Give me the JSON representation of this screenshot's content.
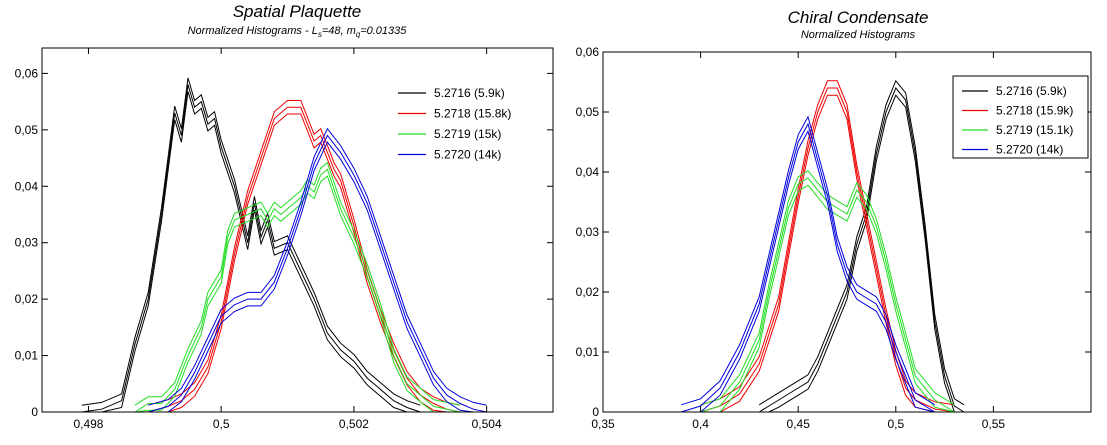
{
  "chart_data": [
    {
      "type": "line",
      "title": "Spatial Plaquette",
      "subtitle_prefix": "Normalized Histograms -  L",
      "subtitle_sub1": "s",
      "subtitle_mid": "=48, m",
      "subtitle_sub2": "q",
      "subtitle_suffix": "=0.01335",
      "xlim": [
        0.4973,
        0.505
      ],
      "ylim": [
        0,
        0.0645
      ],
      "xticks": [
        0.498,
        0.5,
        0.502,
        0.504
      ],
      "xtick_labels": [
        "0,498",
        "0,5",
        "0,502",
        "0,504"
      ],
      "yticks": [
        0,
        0.01,
        0.02,
        0.03,
        0.04,
        0.05,
        0.06
      ],
      "ytick_labels": [
        "0",
        "0,01",
        "0,02",
        "0,03",
        "0,04",
        "0,05",
        "0,06"
      ],
      "error_band": 0.0012,
      "series": [
        {
          "name": "5.2716 (5.9k)",
          "color": "#000000",
          "x": [
            0.4979,
            0.4982,
            0.4985,
            0.4987,
            0.4989,
            0.4991,
            0.4993,
            0.4994,
            0.4995,
            0.4996,
            0.4997,
            0.4998,
            0.4999,
            0.5,
            0.5002,
            0.5004,
            0.5005,
            0.5006,
            0.5007,
            0.5008,
            0.501,
            0.5012,
            0.5014,
            0.5016,
            0.5018,
            0.502,
            0.5022,
            0.5024,
            0.5026,
            0.5028,
            0.503
          ],
          "y": [
            0.0,
            0.0005,
            0.002,
            0.012,
            0.02,
            0.035,
            0.053,
            0.049,
            0.058,
            0.054,
            0.055,
            0.051,
            0.052,
            0.047,
            0.04,
            0.03,
            0.037,
            0.031,
            0.034,
            0.029,
            0.03,
            0.025,
            0.02,
            0.014,
            0.011,
            0.009,
            0.006,
            0.004,
            0.002,
            0.0008,
            0.0
          ]
        },
        {
          "name": "5.2718 (15.8k)",
          "color": "#ee0000",
          "x": [
            0.4989,
            0.4992,
            0.4994,
            0.4996,
            0.4998,
            0.5,
            0.5002,
            0.5004,
            0.5006,
            0.5008,
            0.501,
            0.5012,
            0.5013,
            0.5014,
            0.5015,
            0.5016,
            0.5017,
            0.5018,
            0.5019,
            0.502,
            0.5022,
            0.5024,
            0.5026,
            0.5028,
            0.503,
            0.5032,
            0.5034,
            0.5036
          ],
          "y": [
            0.0,
            0.001,
            0.002,
            0.004,
            0.008,
            0.016,
            0.028,
            0.038,
            0.045,
            0.052,
            0.054,
            0.054,
            0.051,
            0.048,
            0.049,
            0.046,
            0.043,
            0.041,
            0.037,
            0.033,
            0.024,
            0.017,
            0.011,
            0.006,
            0.003,
            0.0015,
            0.0005,
            0.0
          ]
        },
        {
          "name": "5.2719 (15k)",
          "color": "#22dd22",
          "x": [
            0.4987,
            0.4989,
            0.4991,
            0.4993,
            0.4995,
            0.4997,
            0.4998,
            0.5,
            0.5001,
            0.5002,
            0.5004,
            0.5006,
            0.5007,
            0.5008,
            0.5009,
            0.501,
            0.5011,
            0.5012,
            0.5013,
            0.5014,
            0.5015,
            0.5016,
            0.5018,
            0.502,
            0.5022,
            0.5024,
            0.5026,
            0.5028,
            0.503,
            0.5032,
            0.5034,
            0.5036
          ],
          "y": [
            0.0,
            0.0015,
            0.0015,
            0.004,
            0.01,
            0.015,
            0.02,
            0.024,
            0.031,
            0.034,
            0.035,
            0.036,
            0.034,
            0.036,
            0.035,
            0.036,
            0.037,
            0.038,
            0.04,
            0.039,
            0.042,
            0.043,
            0.036,
            0.031,
            0.025,
            0.018,
            0.01,
            0.005,
            0.003,
            0.001,
            0.0005,
            0.0
          ]
        },
        {
          "name": "5.2720 (14k)",
          "color": "#0000dd",
          "x": [
            0.4989,
            0.4992,
            0.4994,
            0.4996,
            0.4998,
            0.5,
            0.5002,
            0.5004,
            0.5006,
            0.5008,
            0.501,
            0.5012,
            0.5014,
            0.5016,
            0.5018,
            0.502,
            0.5022,
            0.5024,
            0.5026,
            0.5028,
            0.503,
            0.5032,
            0.5034,
            0.5036,
            0.5038,
            0.504
          ],
          "y": [
            0.0,
            0.001,
            0.003,
            0.007,
            0.012,
            0.017,
            0.019,
            0.02,
            0.02,
            0.023,
            0.029,
            0.036,
            0.044,
            0.049,
            0.046,
            0.042,
            0.037,
            0.03,
            0.023,
            0.016,
            0.011,
            0.006,
            0.003,
            0.0015,
            0.0005,
            0.0
          ]
        }
      ]
    },
    {
      "type": "line",
      "title": "Chiral Condensate",
      "subtitle": "Normalized Histograms",
      "xlim": [
        0.35,
        0.6
      ],
      "ylim": [
        0,
        0.06
      ],
      "xticks": [
        0.35,
        0.4,
        0.45,
        0.5,
        0.55
      ],
      "xtick_labels": [
        "0,35",
        "0,4",
        "0,45",
        "0,5",
        "0,55"
      ],
      "yticks": [
        0,
        0.01,
        0.02,
        0.03,
        0.04,
        0.05,
        0.06
      ],
      "ytick_labels": [
        "0",
        "0,01",
        "0,02",
        "0,03",
        "0,04",
        "0,05",
        "0,06"
      ],
      "error_band": 0.0012,
      "series": [
        {
          "name": "5.2716 (5.9k)",
          "color": "#000000",
          "x": [
            0.43,
            0.435,
            0.44,
            0.445,
            0.45,
            0.455,
            0.46,
            0.465,
            0.47,
            0.475,
            0.48,
            0.485,
            0.49,
            0.495,
            0.5,
            0.505,
            0.51,
            0.515,
            0.52,
            0.525,
            0.53,
            0.535
          ],
          "y": [
            0.0,
            0.001,
            0.002,
            0.003,
            0.004,
            0.005,
            0.008,
            0.012,
            0.016,
            0.02,
            0.028,
            0.033,
            0.043,
            0.05,
            0.054,
            0.052,
            0.043,
            0.03,
            0.015,
            0.006,
            0.001,
            0.0
          ]
        },
        {
          "name": "5.2718 (15.9k)",
          "color": "#ee0000",
          "x": [
            0.4,
            0.41,
            0.42,
            0.43,
            0.44,
            0.445,
            0.45,
            0.455,
            0.46,
            0.465,
            0.47,
            0.475,
            0.48,
            0.485,
            0.49,
            0.495,
            0.5,
            0.505,
            0.51,
            0.52,
            0.53
          ],
          "y": [
            0.0,
            0.001,
            0.003,
            0.008,
            0.018,
            0.027,
            0.036,
            0.044,
            0.05,
            0.054,
            0.054,
            0.05,
            0.04,
            0.032,
            0.024,
            0.016,
            0.009,
            0.004,
            0.002,
            0.0005,
            0.0
          ]
        },
        {
          "name": "5.2719 (15.1k)",
          "color": "#22dd22",
          "x": [
            0.4,
            0.41,
            0.42,
            0.43,
            0.435,
            0.44,
            0.445,
            0.45,
            0.455,
            0.46,
            0.465,
            0.47,
            0.475,
            0.48,
            0.485,
            0.49,
            0.495,
            0.5,
            0.505,
            0.51,
            0.52,
            0.53
          ],
          "y": [
            0.0,
            0.001,
            0.005,
            0.012,
            0.02,
            0.027,
            0.034,
            0.038,
            0.039,
            0.037,
            0.035,
            0.034,
            0.033,
            0.037,
            0.035,
            0.031,
            0.025,
            0.018,
            0.012,
            0.006,
            0.002,
            0.0
          ]
        },
        {
          "name": "5.2720 (14k)",
          "color": "#0000dd",
          "x": [
            0.39,
            0.4,
            0.41,
            0.42,
            0.43,
            0.435,
            0.44,
            0.445,
            0.45,
            0.455,
            0.46,
            0.465,
            0.47,
            0.475,
            0.48,
            0.485,
            0.49,
            0.495,
            0.5,
            0.505,
            0.51,
            0.52
          ],
          "y": [
            0.0,
            0.001,
            0.004,
            0.01,
            0.018,
            0.025,
            0.032,
            0.039,
            0.045,
            0.048,
            0.042,
            0.036,
            0.028,
            0.023,
            0.02,
            0.019,
            0.018,
            0.015,
            0.01,
            0.006,
            0.002,
            0.0
          ]
        }
      ]
    }
  ]
}
